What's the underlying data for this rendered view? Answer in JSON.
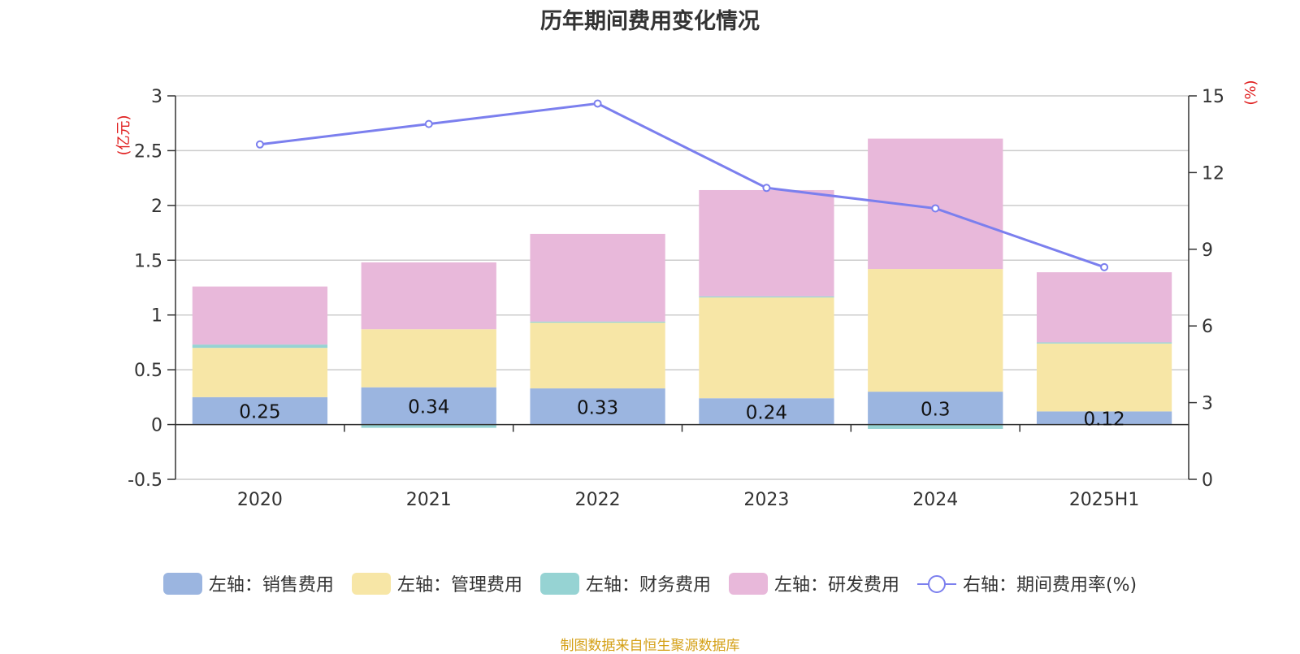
{
  "chart_data": {
    "type": "bar",
    "title": "历年期间费用变化情况",
    "categories": [
      "2020",
      "2021",
      "2022",
      "2023",
      "2024",
      "2025H1"
    ],
    "series": [
      {
        "name": "左轴：销售费用",
        "type": "bar",
        "axis": "left",
        "color": "#9bb5e0",
        "values": [
          0.25,
          0.34,
          0.33,
          0.24,
          0.3,
          0.12
        ],
        "data_labels": [
          "0.25",
          "0.34",
          "0.33",
          "0.24",
          "0.3",
          "0.12"
        ]
      },
      {
        "name": "左轴：管理费用",
        "type": "bar",
        "axis": "left",
        "color": "#f7e6a6",
        "values": [
          0.45,
          0.53,
          0.6,
          0.92,
          1.12,
          0.62
        ]
      },
      {
        "name": "左轴：财务费用",
        "type": "bar",
        "axis": "left",
        "color": "#96d3d3",
        "values": [
          0.03,
          -0.03,
          0.01,
          0.01,
          -0.04,
          0.01
        ]
      },
      {
        "name": "左轴：研发费用",
        "type": "bar",
        "axis": "left",
        "color": "#e8b8da",
        "values": [
          0.53,
          0.61,
          0.8,
          0.97,
          1.19,
          0.64
        ]
      },
      {
        "name": "右轴：期间费用率(%)",
        "type": "line",
        "axis": "right",
        "color": "#7b7fee",
        "values": [
          13.1,
          13.9,
          14.7,
          11.4,
          10.6,
          8.3
        ]
      }
    ],
    "y_left": {
      "label": "(亿元)",
      "ylim": [
        -0.5,
        3
      ],
      "ticks": [
        "-0.5",
        "0",
        "0.5",
        "1",
        "1.5",
        "2",
        "2.5",
        "3"
      ]
    },
    "y_right": {
      "label": "(%)",
      "ylim": [
        0,
        15
      ],
      "ticks": [
        "0",
        "3",
        "6",
        "9",
        "12",
        "15"
      ]
    },
    "grid": true,
    "legend_position": "bottom"
  },
  "source": "制图数据来自恒生聚源数据库"
}
